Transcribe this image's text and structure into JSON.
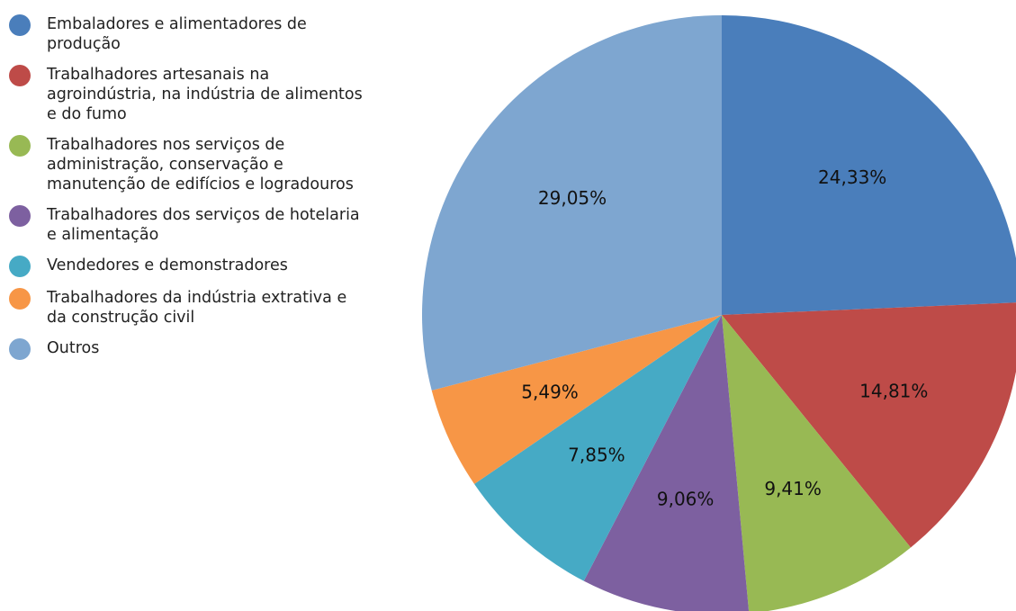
{
  "chart_data": {
    "type": "pie",
    "categories": [
      "Embaladores e alimentadores de produção",
      "Trabalhadores artesanais na agroindústria, na indústria de alimentos e do fumo",
      "Trabalhadores nos serviços de administração, conservação e manutenção de edifícios e logradouros",
      "Trabalhadores dos serviços de hotelaria e alimentação",
      "Vendedores e demonstradores",
      "Trabalhadores da indústria extrativa e da construção civil",
      "Outros"
    ],
    "values": [
      24.33,
      14.81,
      9.41,
      9.06,
      7.85,
      5.49,
      29.05
    ],
    "value_labels": [
      "24,33%",
      "14,81%",
      "9,41%",
      "9,06%",
      "7,85%",
      "5,49%",
      "29,05%"
    ],
    "colors": [
      "#4a7ebb",
      "#be4b48",
      "#98b954",
      "#7d60a0",
      "#46aac5",
      "#f79646",
      "#7ea6d0"
    ],
    "legend": "left"
  }
}
